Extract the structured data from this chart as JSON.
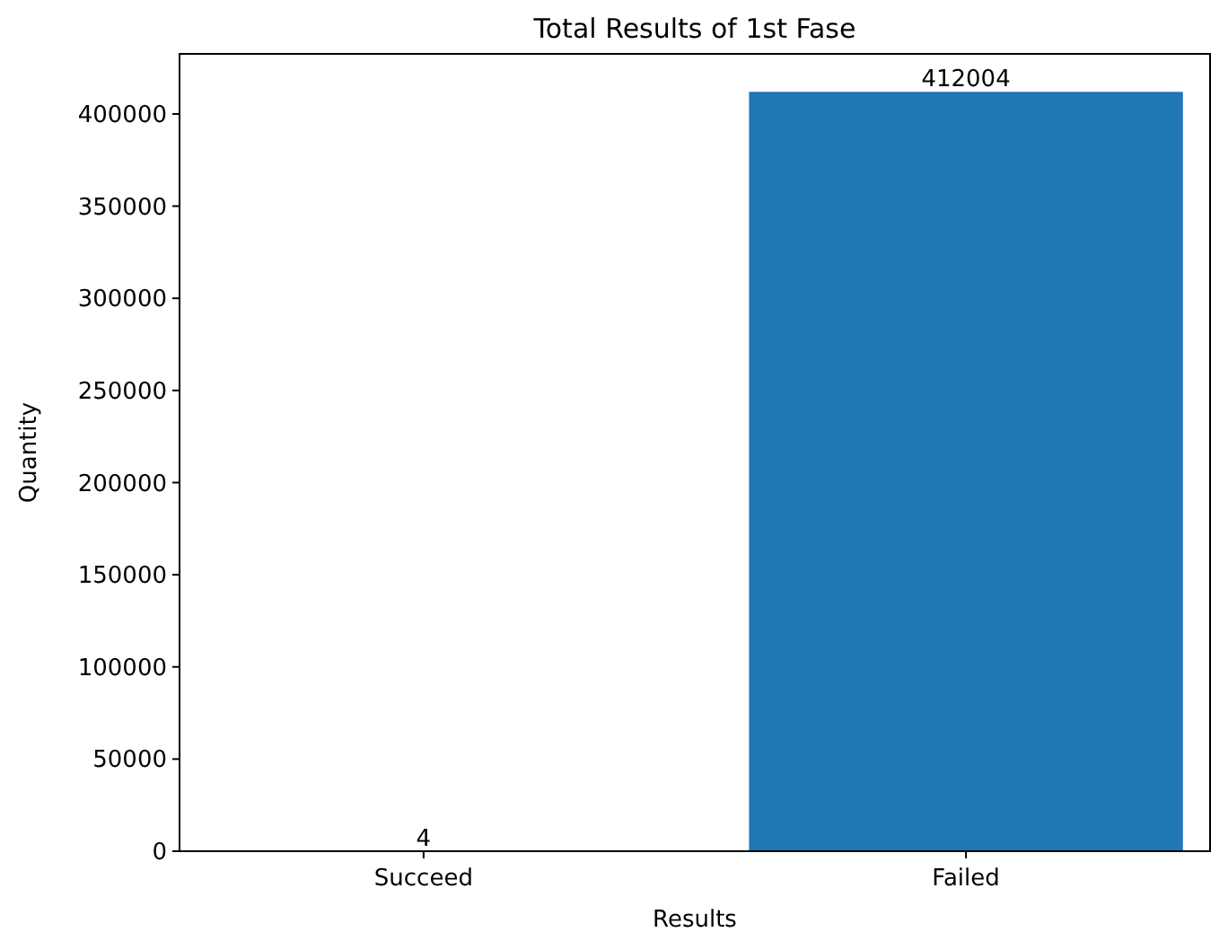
{
  "chart_data": {
    "type": "bar",
    "title": "Total Results of 1st Fase",
    "xlabel": "Results",
    "ylabel": "Quantity",
    "categories": [
      "Succeed",
      "Failed"
    ],
    "values": [
      4,
      412004
    ],
    "color": "#1f77b4",
    "data_labels": true,
    "ylim": [
      0,
      432604
    ],
    "yticks": [
      0,
      50000,
      100000,
      150000,
      200000,
      250000,
      300000,
      350000,
      400000
    ],
    "grid": false
  }
}
